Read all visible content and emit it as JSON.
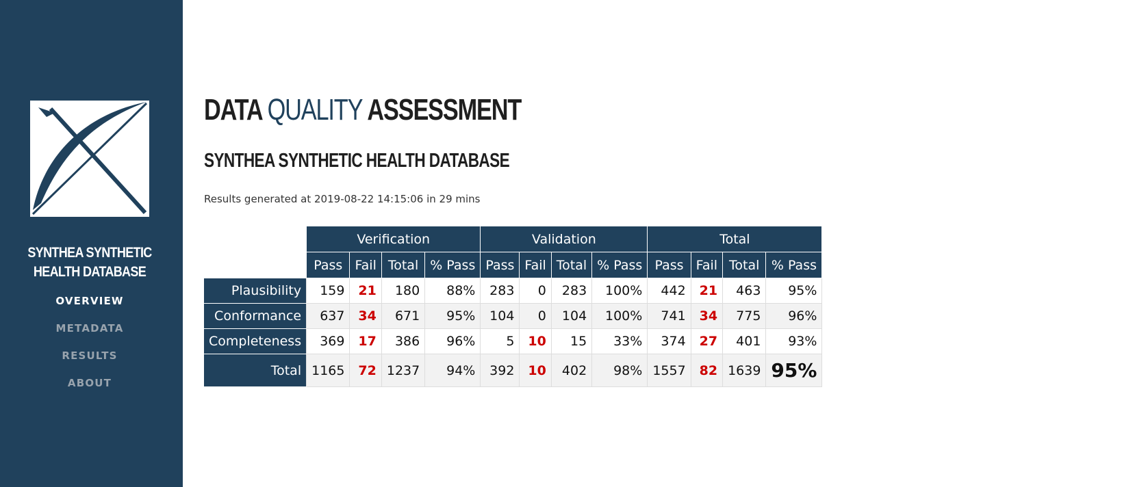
{
  "sidebar": {
    "db_name": "SYNTHEA SYNTHETIC HEALTH DATABASE",
    "nav": [
      {
        "label": "OVERVIEW",
        "active": true
      },
      {
        "label": "METADATA",
        "active": false
      },
      {
        "label": "RESULTS",
        "active": false
      },
      {
        "label": "ABOUT",
        "active": false
      }
    ]
  },
  "header": {
    "title_part1": "DATA ",
    "title_accent": "QUALITY",
    "title_part2": " ASSESSMENT",
    "subtitle": "SYNTHEA SYNTHETIC HEALTH DATABASE",
    "generated_info": "Results generated at 2019-08-22 14:15:06 in 29 mins"
  },
  "colors": {
    "sidebar_bg": "#20415c",
    "accent": "#20415c",
    "fail_highlight": "#cc0000"
  },
  "table": {
    "groups": [
      "Verification",
      "Validation",
      "Total"
    ],
    "subheaders": [
      "Pass",
      "Fail",
      "Total",
      "% Pass"
    ],
    "rows": [
      {
        "label": "Plausibility",
        "cells": [
          "159",
          "21",
          "180",
          "88%",
          "283",
          "0",
          "283",
          "100%",
          "442",
          "21",
          "463",
          "95%"
        ]
      },
      {
        "label": "Conformance",
        "cells": [
          "637",
          "34",
          "671",
          "95%",
          "104",
          "0",
          "104",
          "100%",
          "741",
          "34",
          "775",
          "96%"
        ]
      },
      {
        "label": "Completeness",
        "cells": [
          "369",
          "17",
          "386",
          "96%",
          "5",
          "10",
          "15",
          "33%",
          "374",
          "27",
          "401",
          "93%"
        ]
      },
      {
        "label": "Total",
        "cells": [
          "1165",
          "72",
          "1237",
          "94%",
          "392",
          "10",
          "402",
          "98%",
          "1557",
          "82",
          "1639",
          "95%"
        ]
      }
    ]
  }
}
